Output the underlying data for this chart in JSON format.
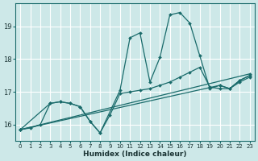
{
  "title": "",
  "xlabel": "Humidex (Indice chaleur)",
  "ylabel": "",
  "bg_color": "#cde8e8",
  "grid_color": "#ffffff",
  "line_color": "#1a6b6b",
  "xlim": [
    -0.5,
    23.5
  ],
  "ylim": [
    15.5,
    19.7
  ],
  "yticks": [
    16,
    17,
    18,
    19
  ],
  "xticks": [
    0,
    1,
    2,
    3,
    4,
    5,
    6,
    7,
    8,
    9,
    10,
    11,
    12,
    13,
    14,
    15,
    16,
    17,
    18,
    19,
    20,
    21,
    22,
    23
  ],
  "series": [
    {
      "x": [
        0,
        1,
        2,
        3,
        4,
        5,
        6,
        7,
        8,
        10,
        11,
        12,
        13,
        14,
        15,
        16,
        17,
        18,
        19,
        20,
        21,
        22,
        23
      ],
      "y": [
        15.85,
        15.9,
        16.0,
        16.65,
        16.7,
        16.65,
        16.55,
        16.1,
        15.75,
        17.05,
        18.65,
        18.8,
        17.3,
        18.05,
        19.35,
        19.42,
        19.1,
        18.1,
        17.1,
        17.2,
        17.1,
        17.3,
        17.45
      ]
    },
    {
      "x": [
        0,
        23
      ],
      "y": [
        15.85,
        17.55
      ]
    },
    {
      "x": [
        0,
        20,
        21,
        22,
        23
      ],
      "y": [
        15.85,
        17.2,
        17.1,
        17.35,
        17.5
      ]
    },
    {
      "x": [
        0,
        3,
        4,
        5,
        6,
        7,
        8,
        9,
        10,
        11,
        12,
        13,
        14,
        15,
        16,
        17,
        18,
        19,
        20,
        21,
        22,
        23
      ],
      "y": [
        15.85,
        16.65,
        16.7,
        16.65,
        16.55,
        16.1,
        15.75,
        16.3,
        16.95,
        17.0,
        17.05,
        17.1,
        17.2,
        17.3,
        17.45,
        17.6,
        17.75,
        17.15,
        17.1,
        17.1,
        17.35,
        17.5
      ]
    }
  ]
}
